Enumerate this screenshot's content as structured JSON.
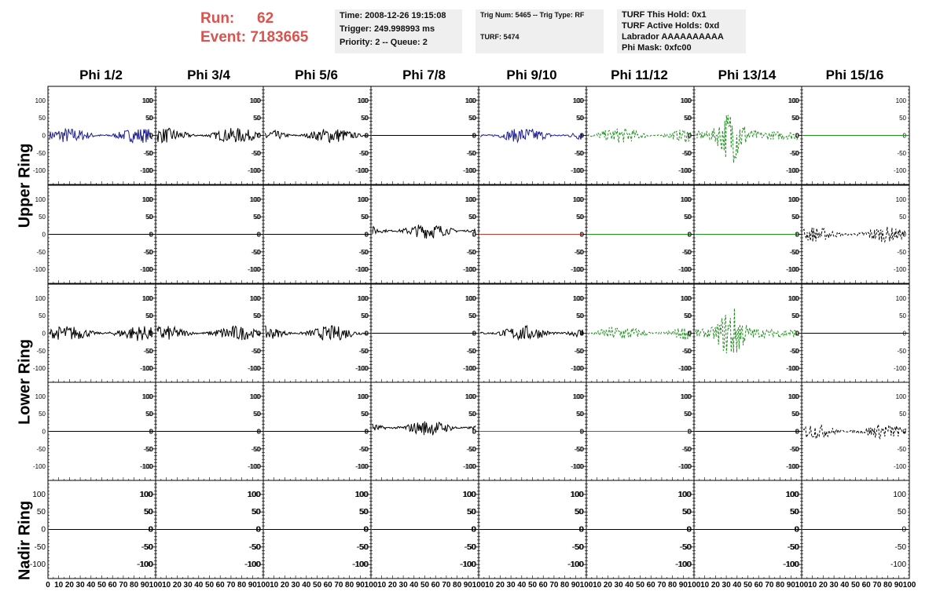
{
  "header": {
    "run_label": "Run:",
    "run_value": "62",
    "event_label": "Event:",
    "event_value": "7183665",
    "time_box": {
      "line1": "Time: 2008-12-26 19:15:08",
      "line2": "Trigger: 249.998993 ms",
      "line3": "Priority: 2 -- Queue: 2"
    },
    "trig_box": {
      "line1": "Trig Num: 5465 -- Trig Type: RF",
      "line2": "TURF: 5474"
    },
    "turf_box": {
      "line1": "TURF This Hold: 0x1",
      "line2": "TURF Active Holds: 0xd",
      "line3": "Labrador AAAAAAAAAA",
      "line4": "Phi Mask: 0xfc00"
    }
  },
  "phi_headers": [
    "Phi 1/2",
    "Phi 3/4",
    "Phi 5/6",
    "Phi 7/8",
    "Phi 9/10",
    "Phi 11/12",
    "Phi 13/14",
    "Phi 15/16"
  ],
  "ring_labels": [
    "Upper Ring",
    "Lower Ring",
    "Nadir Ring"
  ],
  "y_ticks": [
    "100",
    "50",
    "0",
    "-50",
    "-100"
  ],
  "x_ticks": [
    "0",
    "10",
    "20",
    "30",
    "40",
    "50",
    "60",
    "70",
    "80",
    "90",
    "100"
  ],
  "colors": {
    "blue": "#1f1f8f",
    "black": "#000000",
    "green": "#1f8f1f",
    "red": "#c0392b",
    "header_red": "#d9534f"
  },
  "chart_data": {
    "type": "line",
    "ylim": [
      -140,
      140
    ],
    "xlim": [
      0,
      100
    ],
    "rows": [
      [
        "blue-wave",
        "black-wave",
        "black-wave",
        "black-flat",
        "blue-wave",
        "green-dashed-wave",
        "green-dashed-big",
        "green-flat"
      ],
      [
        "black-flat",
        "black-flat",
        "black-flat",
        "black-wave-offset",
        "red-flat",
        "green-flat",
        "green-flat",
        "black-dashed-wave"
      ],
      [
        "black-wave",
        "black-wave",
        "black-wave",
        "black-flat",
        "black-wave",
        "green-dashed-wave",
        "green-dashed-big",
        "black-flat"
      ],
      [
        "black-flat",
        "black-flat",
        "black-flat",
        "black-wave-offset",
        "red-flat",
        "green-flat",
        "black-flat",
        "black-dashed-wave"
      ],
      [
        "black-flat",
        "black-flat",
        "black-flat",
        "black-flat",
        "black-flat",
        "black-flat",
        "black-flat",
        "black-flat"
      ]
    ]
  }
}
